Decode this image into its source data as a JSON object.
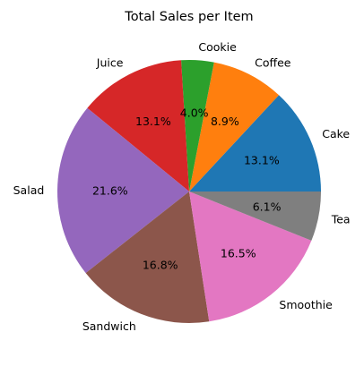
{
  "chart_data": {
    "type": "pie",
    "title": "Total Sales per Item",
    "categories": [
      "Cake",
      "Coffee",
      "Cookie",
      "Juice",
      "Salad",
      "Sandwich",
      "Smoothie",
      "Tea"
    ],
    "values": [
      13.1,
      8.9,
      4.0,
      13.1,
      21.6,
      16.8,
      16.5,
      6.1
    ],
    "value_labels": [
      "13.1%",
      "8.9%",
      "4.0%",
      "13.1%",
      "21.6%",
      "16.8%",
      "16.5%",
      "6.1%"
    ],
    "colors": [
      "#1f77b4",
      "#ff7f0e",
      "#2ca02c",
      "#d62728",
      "#9467bd",
      "#8c564b",
      "#e377c2",
      "#7f7f7f"
    ],
    "start_angle_deg": 0,
    "direction": "counterclockwise",
    "legend": false
  }
}
